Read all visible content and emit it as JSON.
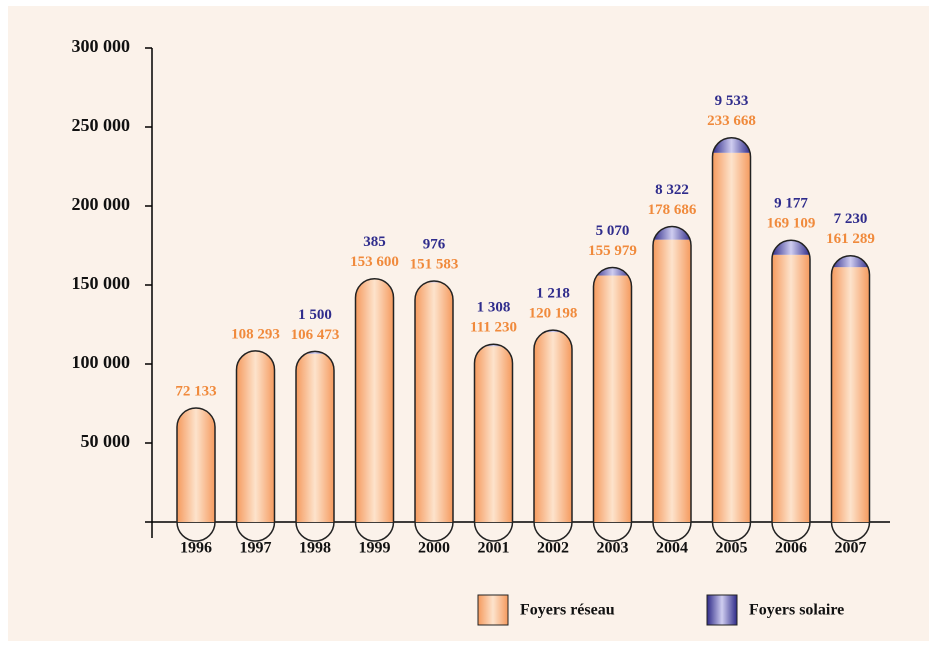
{
  "chart_data": {
    "type": "bar",
    "stacked": true,
    "categories": [
      "1996",
      "1997",
      "1998",
      "1999",
      "2000",
      "2001",
      "2002",
      "2003",
      "2004",
      "2005",
      "2006",
      "2007"
    ],
    "series": [
      {
        "name": "Foyers réseau",
        "color": "#f7a470",
        "values": [
          72133,
          108293,
          106473,
          153600,
          151583,
          111230,
          120198,
          155979,
          178686,
          233668,
          169109,
          161289
        ],
        "value_labels": [
          "72 133",
          "108 293",
          "106 473",
          "153 600",
          "151 583",
          "111 230",
          "120 198",
          "155 979",
          "178 686",
          "233 668",
          "169 109",
          "161 289"
        ]
      },
      {
        "name": "Foyers solaire",
        "color": "#3c3896",
        "values": [
          null,
          null,
          1500,
          385,
          976,
          1308,
          1218,
          5070,
          8322,
          9533,
          9177,
          7230
        ],
        "value_labels": [
          null,
          null,
          "1 500",
          "385",
          "976",
          "1 308",
          "1 218",
          "5 070",
          "8 322",
          "9 533",
          "9 177",
          "7 230"
        ]
      }
    ],
    "ylim": [
      0,
      300000
    ],
    "yticks": [
      {
        "value": 50000,
        "label": "50 000"
      },
      {
        "value": 100000,
        "label": "100 000"
      },
      {
        "value": 150000,
        "label": "150 000"
      },
      {
        "value": 200000,
        "label": "200 000"
      },
      {
        "value": 250000,
        "label": "250 000"
      },
      {
        "value": 300000,
        "label": "300 000"
      }
    ]
  }
}
